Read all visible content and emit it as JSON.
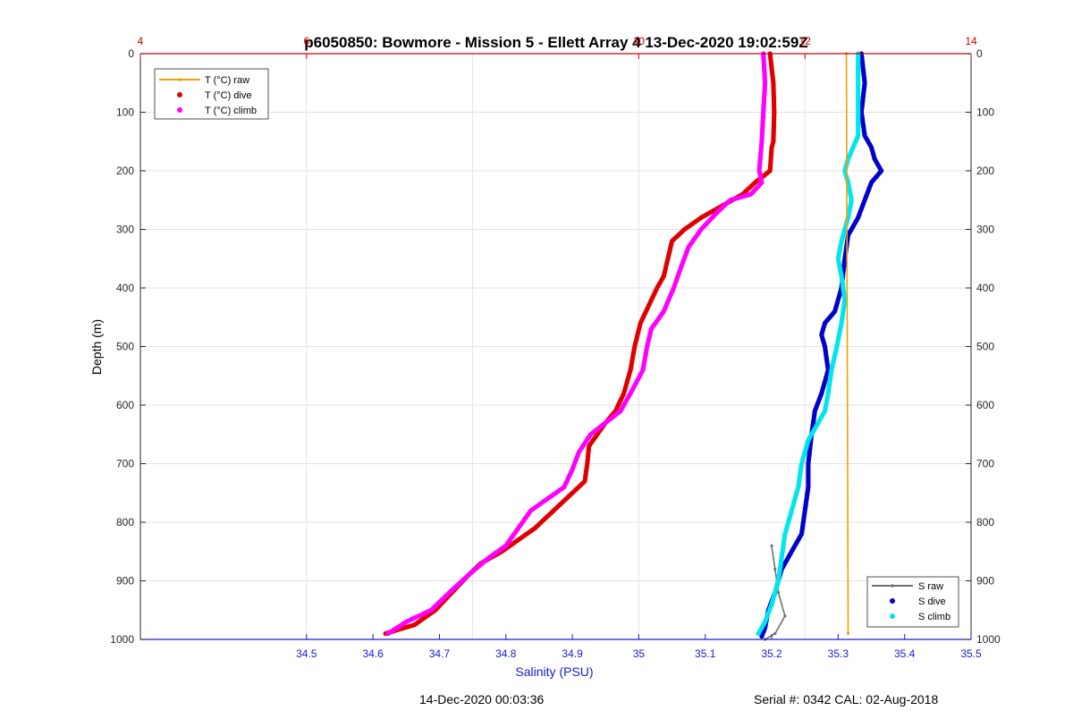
{
  "chart_data": {
    "type": "line",
    "title": "p6050850: Bowmore - Mission 5 - Ellett Array 4 13-Dec-2020 19:02:59Z",
    "ylabel": "Depth (m)",
    "xlabel": "Salinity (PSU)",
    "ylim": [
      0,
      1000
    ],
    "y_reversed": true,
    "yticks": [
      0,
      100,
      200,
      300,
      400,
      500,
      600,
      700,
      800,
      900,
      1000
    ],
    "xlim_salinity": [
      34.25,
      35.5
    ],
    "xticks_salinity": [
      34.5,
      34.6,
      34.7,
      34.8,
      34.9,
      35,
      35.1,
      35.2,
      35.3,
      35.4,
      35.5
    ],
    "xlim_temperature": [
      4,
      14
    ],
    "xticks_temperature_labels": [
      {
        "value": 4,
        "label": "4"
      },
      {
        "value": 6,
        "label": "6"
      },
      {
        "value": 10,
        "label": "10"
      },
      {
        "value": 12,
        "label": "12"
      },
      {
        "value": 14,
        "label": "14"
      }
    ],
    "grid": true,
    "colors": {
      "temperature_axis": "#d40000",
      "salinity_axis": "#1a1acc",
      "t_raw": "#f0a000",
      "t_dive": "#e00000",
      "t_climb": "#ff00ff",
      "s_raw": "#707070",
      "s_dive": "#0000cc",
      "s_climb": "#00e5ee"
    },
    "legend_temperature": {
      "placement": "top-left",
      "entries": [
        "T (°C) raw",
        "T (°C) dive",
        "T (°C) climb"
      ]
    },
    "legend_salinity": {
      "placement": "bottom-right",
      "entries": [
        "S raw",
        "S dive",
        "S climb"
      ]
    },
    "series": [
      {
        "name": "T (°C) raw",
        "axis": "temperature",
        "style": "line",
        "points": [
          [
            12.5,
            0
          ],
          [
            12.52,
            990
          ]
        ]
      },
      {
        "name": "T (°C) dive",
        "axis": "temperature",
        "style": "dots",
        "points": [
          [
            11.58,
            0
          ],
          [
            11.62,
            50
          ],
          [
            11.63,
            100
          ],
          [
            11.62,
            150
          ],
          [
            11.6,
            160
          ],
          [
            11.58,
            200
          ],
          [
            11.4,
            220
          ],
          [
            11.25,
            240
          ],
          [
            11.0,
            260
          ],
          [
            10.75,
            280
          ],
          [
            10.55,
            300
          ],
          [
            10.4,
            320
          ],
          [
            10.35,
            350
          ],
          [
            10.3,
            380
          ],
          [
            10.22,
            400
          ],
          [
            10.12,
            430
          ],
          [
            10.02,
            460
          ],
          [
            9.95,
            500
          ],
          [
            9.9,
            540
          ],
          [
            9.82,
            580
          ],
          [
            9.72,
            610
          ],
          [
            9.6,
            630
          ],
          [
            9.5,
            650
          ],
          [
            9.4,
            670
          ],
          [
            9.38,
            700
          ],
          [
            9.35,
            730
          ],
          [
            9.2,
            750
          ],
          [
            9.05,
            770
          ],
          [
            8.9,
            790
          ],
          [
            8.75,
            810
          ],
          [
            8.55,
            830
          ],
          [
            8.35,
            850
          ],
          [
            8.1,
            870
          ],
          [
            7.95,
            890
          ],
          [
            7.75,
            920
          ],
          [
            7.55,
            950
          ],
          [
            7.3,
            975
          ],
          [
            6.95,
            990
          ]
        ]
      },
      {
        "name": "T (°C) climb",
        "axis": "temperature",
        "style": "dots",
        "points": [
          [
            11.5,
            0
          ],
          [
            11.52,
            50
          ],
          [
            11.5,
            100
          ],
          [
            11.48,
            150
          ],
          [
            11.45,
            200
          ],
          [
            11.48,
            220
          ],
          [
            11.35,
            240
          ],
          [
            11.1,
            250
          ],
          [
            10.95,
            270
          ],
          [
            10.75,
            300
          ],
          [
            10.6,
            330
          ],
          [
            10.52,
            360
          ],
          [
            10.42,
            400
          ],
          [
            10.3,
            440
          ],
          [
            10.15,
            470
          ],
          [
            10.1,
            500
          ],
          [
            10.05,
            540
          ],
          [
            9.9,
            580
          ],
          [
            9.78,
            610
          ],
          [
            9.6,
            630
          ],
          [
            9.42,
            650
          ],
          [
            9.28,
            680
          ],
          [
            9.2,
            710
          ],
          [
            9.1,
            740
          ],
          [
            8.9,
            760
          ],
          [
            8.7,
            780
          ],
          [
            8.55,
            810
          ],
          [
            8.4,
            840
          ],
          [
            8.2,
            860
          ],
          [
            7.95,
            890
          ],
          [
            7.72,
            920
          ],
          [
            7.5,
            950
          ],
          [
            7.2,
            970
          ],
          [
            6.98,
            990
          ]
        ]
      },
      {
        "name": "S raw",
        "axis": "salinity",
        "style": "line",
        "points": [
          [
            35.2,
            840
          ],
          [
            35.205,
            880
          ],
          [
            35.21,
            920
          ],
          [
            35.22,
            960
          ],
          [
            35.205,
            990
          ],
          [
            35.19,
            1000
          ]
        ]
      },
      {
        "name": "S dive",
        "axis": "salinity",
        "style": "dots",
        "points": [
          [
            35.335,
            0
          ],
          [
            35.34,
            50
          ],
          [
            35.335,
            100
          ],
          [
            35.34,
            140
          ],
          [
            35.35,
            160
          ],
          [
            35.355,
            180
          ],
          [
            35.365,
            200
          ],
          [
            35.35,
            220
          ],
          [
            35.34,
            250
          ],
          [
            35.33,
            280
          ],
          [
            35.315,
            310
          ],
          [
            35.31,
            350
          ],
          [
            35.305,
            400
          ],
          [
            35.295,
            440
          ],
          [
            35.28,
            460
          ],
          [
            35.275,
            480
          ],
          [
            35.28,
            500
          ],
          [
            35.285,
            540
          ],
          [
            35.275,
            580
          ],
          [
            35.265,
            610
          ],
          [
            35.26,
            650
          ],
          [
            35.255,
            700
          ],
          [
            35.255,
            740
          ],
          [
            35.25,
            780
          ],
          [
            35.245,
            820
          ],
          [
            35.23,
            850
          ],
          [
            35.215,
            880
          ],
          [
            35.205,
            920
          ],
          [
            35.195,
            950
          ],
          [
            35.19,
            980
          ],
          [
            35.185,
            995
          ]
        ]
      },
      {
        "name": "S climb",
        "axis": "salinity",
        "style": "dots",
        "points": [
          [
            35.33,
            0
          ],
          [
            35.33,
            50
          ],
          [
            35.33,
            100
          ],
          [
            35.33,
            140
          ],
          [
            35.315,
            180
          ],
          [
            35.31,
            200
          ],
          [
            35.315,
            220
          ],
          [
            35.32,
            250
          ],
          [
            35.315,
            280
          ],
          [
            35.305,
            320
          ],
          [
            35.3,
            350
          ],
          [
            35.305,
            380
          ],
          [
            35.31,
            420
          ],
          [
            35.305,
            460
          ],
          [
            35.298,
            500
          ],
          [
            35.29,
            540
          ],
          [
            35.285,
            580
          ],
          [
            35.28,
            610
          ],
          [
            35.27,
            630
          ],
          [
            35.255,
            660
          ],
          [
            35.245,
            700
          ],
          [
            35.24,
            740
          ],
          [
            35.23,
            780
          ],
          [
            35.22,
            820
          ],
          [
            35.215,
            860
          ],
          [
            35.21,
            900
          ],
          [
            35.2,
            940
          ],
          [
            35.19,
            970
          ],
          [
            35.18,
            990
          ]
        ]
      }
    ]
  },
  "footer": {
    "timestamp": "14-Dec-2020 00:03:36",
    "serial": "Serial #: 0342  CAL: 02-Aug-2018"
  }
}
